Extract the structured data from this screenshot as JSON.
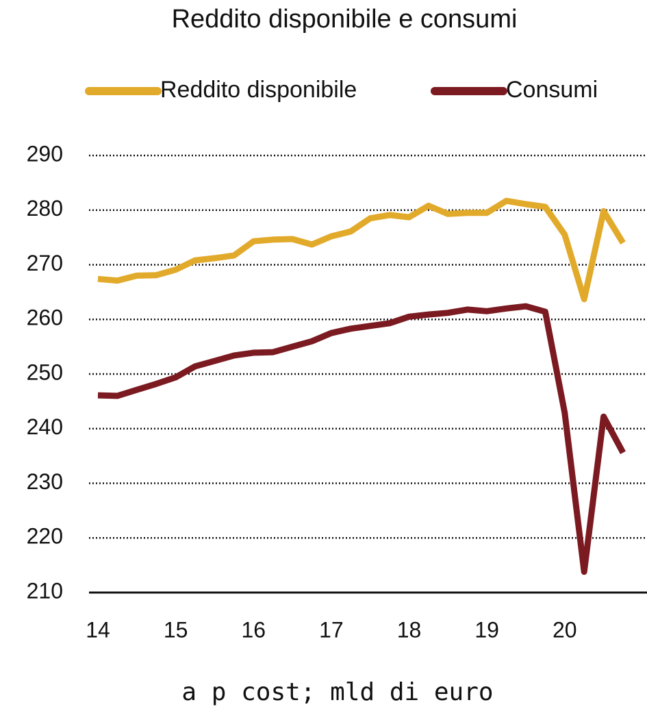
{
  "chart_data": {
    "type": "line",
    "title": "Reddito disponibile e consumi",
    "subtitle": "a p cost; mld di euro",
    "categories": [
      "14",
      null,
      null,
      null,
      "15",
      null,
      null,
      null,
      "16",
      null,
      null,
      null,
      "17",
      null,
      null,
      null,
      "18",
      null,
      null,
      null,
      "19",
      null,
      null,
      null,
      "20",
      null,
      null,
      null
    ],
    "series": [
      {
        "name": "Reddito disponibile",
        "color": "#e2aa2a",
        "values": [
          267.4,
          267.1,
          268.0,
          268.1,
          269.1,
          270.8,
          271.2,
          271.7,
          274.3,
          274.6,
          274.7,
          273.7,
          275.2,
          276.1,
          278.5,
          279.1,
          278.7,
          280.8,
          279.3,
          279.5,
          279.5,
          281.7,
          281.1,
          280.6,
          275.5,
          263.7,
          279.8,
          274.0
        ]
      },
      {
        "name": "Consumi",
        "color": "#7b1a20",
        "values": [
          246.1,
          246.0,
          247.1,
          248.2,
          249.4,
          251.4,
          252.4,
          253.4,
          253.9,
          254.0,
          255.0,
          256.0,
          257.5,
          258.3,
          258.8,
          259.3,
          260.5,
          260.9,
          261.2,
          261.8,
          261.5,
          262.0,
          262.4,
          261.4,
          242.9,
          213.8,
          242.2,
          235.6
        ]
      }
    ],
    "ylim": [
      210,
      290
    ],
    "yticks": [
      210,
      220,
      230,
      240,
      250,
      260,
      270,
      280,
      290
    ],
    "grid": true,
    "legend": "top"
  }
}
